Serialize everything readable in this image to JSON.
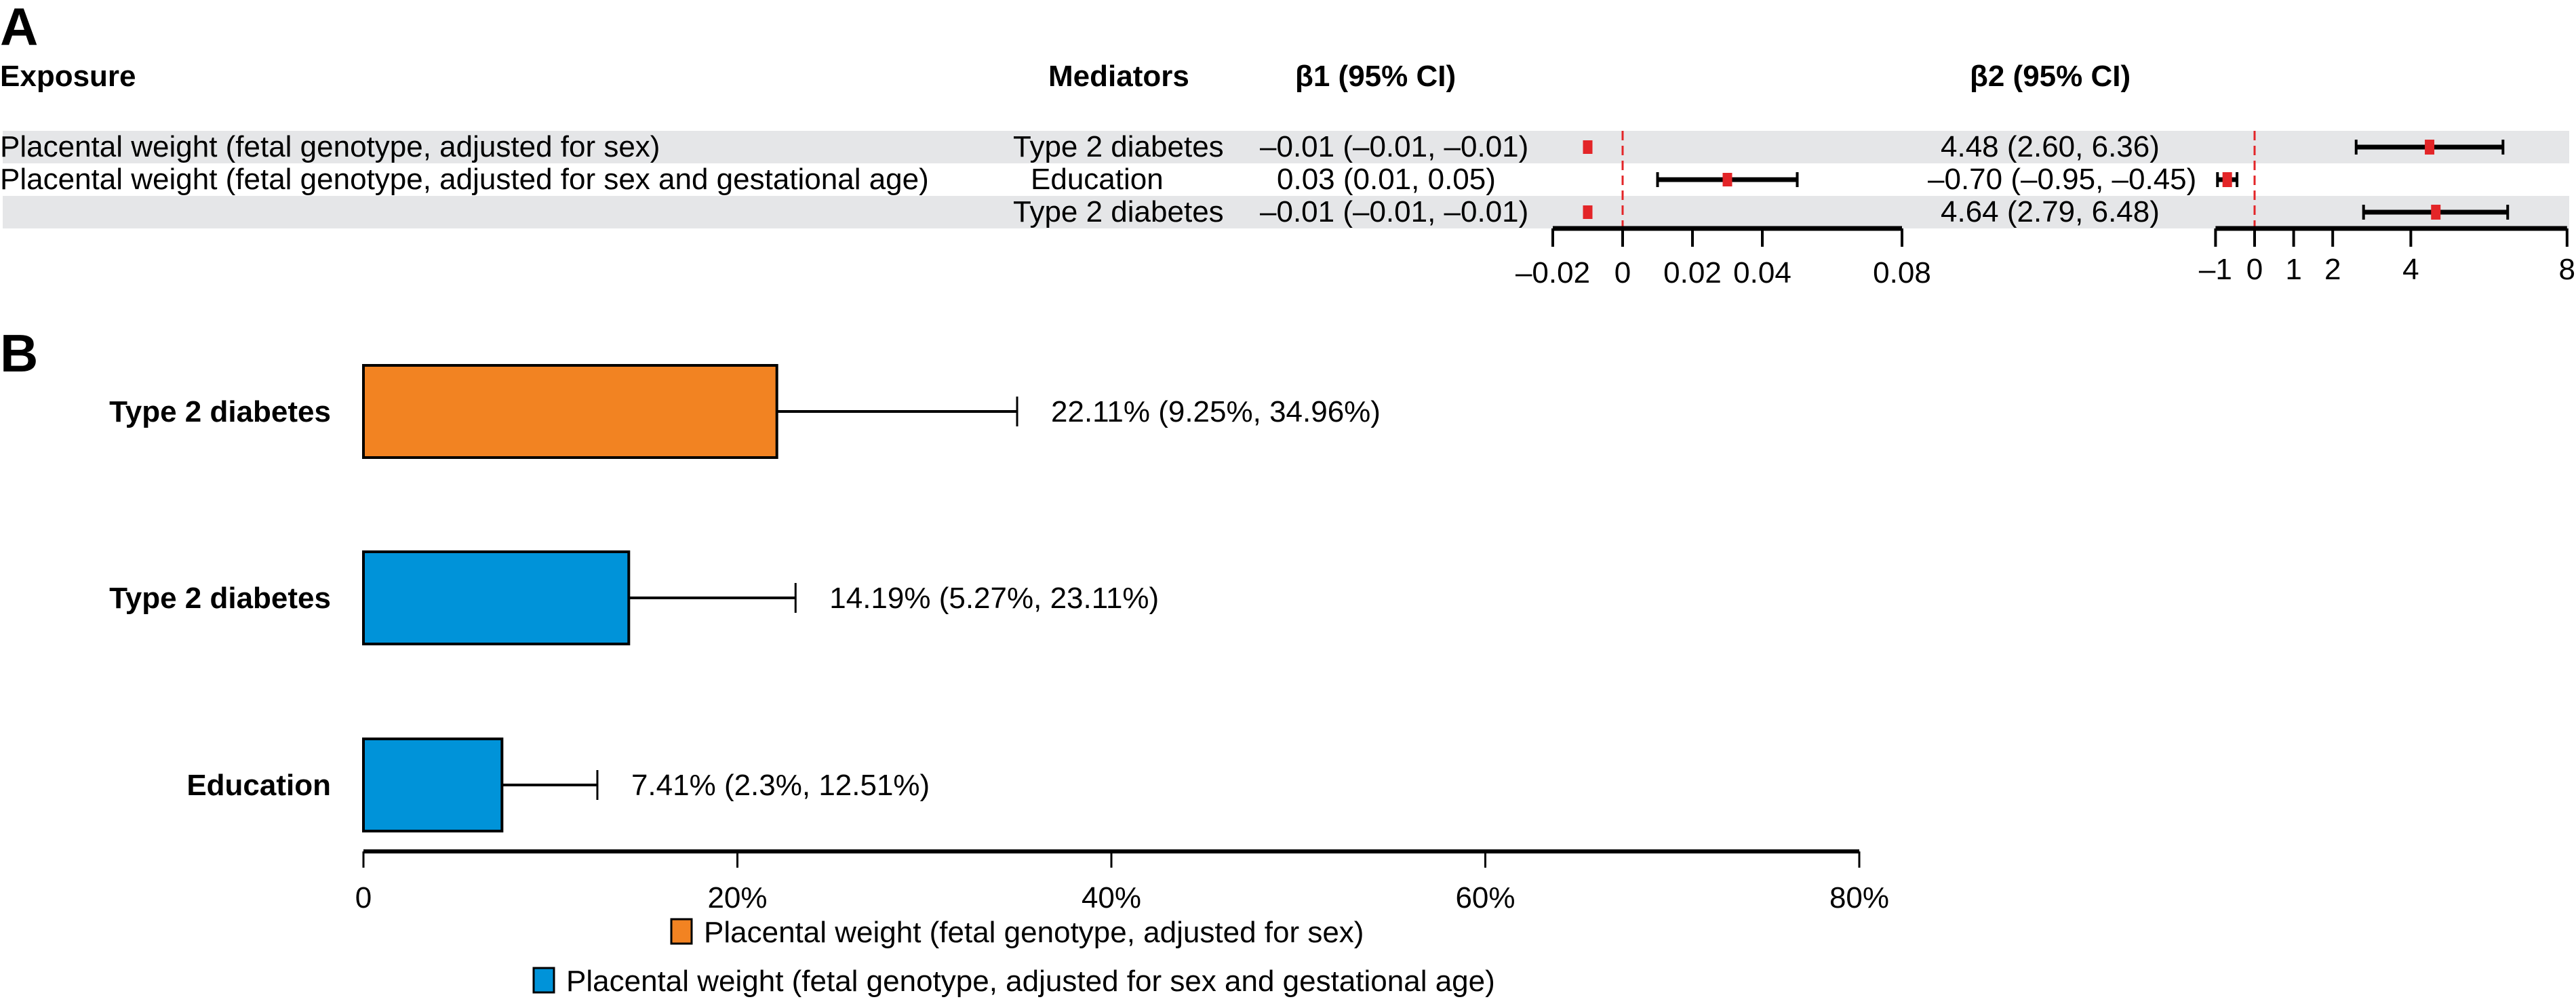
{
  "panel_a": {
    "label": "A",
    "headers": {
      "exposure": "Exposure",
      "mediators": "Mediators",
      "beta1": "β1 (95% CI)",
      "beta2": "β2 (95% CI)"
    },
    "rows": [
      {
        "exposure": "Placental weight (fetal genotype, adjusted for sex)",
        "mediator": "Type 2 diabetes",
        "beta1_text": "–0.01 (–0.01, –0.01)",
        "beta2_text": "4.48 (2.60, 6.36)",
        "shaded": true
      },
      {
        "exposure": "Placental weight (fetal genotype, adjusted for sex and gestational age)",
        "mediator": "Education",
        "beta1_text": "0.03 (0.01, 0.05)",
        "beta2_text": "–0.70 (–0.95, –0.45)",
        "shaded": false
      },
      {
        "exposure": "",
        "mediator": "Type 2 diabetes",
        "beta1_text": "–0.01 (–0.01, –0.01)",
        "beta2_text": "4.64 (2.79, 6.48)",
        "shaded": true
      }
    ]
  },
  "panel_b": {
    "label": "B"
  },
  "colors": {
    "point": "#e32528",
    "ref_line": "#e32528",
    "row_shade": "#e5e6e8",
    "orange": "#f28322",
    "blue": "#0093d9"
  },
  "chart_data": [
    {
      "type": "scatter",
      "title": "β1 (95% CI)",
      "subtype": "forest",
      "xlim": [
        -0.02,
        0.08
      ],
      "xticks": [
        -0.02,
        0,
        0.02,
        0.04,
        0.08
      ],
      "xtick_labels": [
        "–0.02",
        "0",
        "0.02",
        "0.04",
        "0.08"
      ],
      "reference_line": 0,
      "points": [
        {
          "est": -0.01,
          "lo": -0.01,
          "hi": -0.01
        },
        {
          "est": 0.03,
          "lo": 0.01,
          "hi": 0.05
        },
        {
          "est": -0.01,
          "lo": -0.01,
          "hi": -0.01
        }
      ]
    },
    {
      "type": "scatter",
      "title": "β2 (95% CI)",
      "subtype": "forest",
      "xlim": [
        -1,
        8
      ],
      "xticks": [
        -1,
        0,
        1,
        2,
        4,
        8
      ],
      "xtick_labels": [
        "–1",
        "0",
        "1",
        "2",
        "4",
        "8"
      ],
      "reference_line": 0,
      "points": [
        {
          "est": 4.48,
          "lo": 2.6,
          "hi": 6.36
        },
        {
          "est": -0.7,
          "lo": -0.95,
          "hi": -0.45
        },
        {
          "est": 4.64,
          "lo": 2.79,
          "hi": 6.48
        }
      ]
    },
    {
      "type": "bar",
      "orientation": "horizontal",
      "categories": [
        "Type 2 diabetes",
        "Type 2 diabetes",
        "Education"
      ],
      "values": [
        22.11,
        14.19,
        7.41
      ],
      "ci_low": [
        9.25,
        5.27,
        2.3
      ],
      "ci_high": [
        34.96,
        23.11,
        12.51
      ],
      "labels": [
        "22.11% (9.25%, 34.96%)",
        "14.19% (5.27%, 23.11%)",
        "7.41% (2.3%, 12.51%)"
      ],
      "series_index": [
        0,
        1,
        1
      ],
      "xlim": [
        0,
        80
      ],
      "xticks": [
        0,
        20,
        40,
        60,
        80
      ],
      "xtick_labels": [
        "0",
        "20%",
        "40%",
        "60%",
        "80%"
      ],
      "xlabel": "",
      "ylabel": "",
      "legend": [
        {
          "name": "Placental weight (fetal genotype, adjusted for sex)",
          "color": "#f28322"
        },
        {
          "name": "Placental weight (fetal genotype, adjusted for sex and gestational age)",
          "color": "#0093d9"
        }
      ],
      "legend_position": "bottom"
    }
  ]
}
